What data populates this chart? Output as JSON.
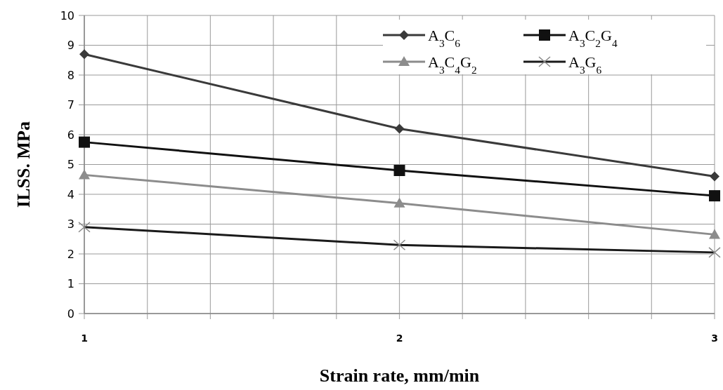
{
  "chart_data": {
    "type": "line",
    "xlabel": "Strain rate, mm/min",
    "ylabel": "ILSS. MPa",
    "x": [
      1,
      2,
      3
    ],
    "xlim": [
      1,
      3
    ],
    "xticks": [
      1,
      {
        "value": 1.2,
        "label": null
      },
      {
        "value": 1.4,
        "label": null
      },
      {
        "value": 1.6,
        "label": null
      },
      {
        "value": 1.8,
        "label": null
      },
      2,
      {
        "value": 2.2,
        "label": null
      },
      {
        "value": 2.4,
        "label": null
      },
      {
        "value": 2.6,
        "label": null
      },
      {
        "value": 2.8,
        "label": null
      },
      3
    ],
    "ylim": [
      0,
      10
    ],
    "yticks": [
      0,
      1,
      2,
      3,
      4,
      5,
      6,
      7,
      8,
      9,
      10
    ],
    "grid": true,
    "legend": "top right",
    "line_style": "solid",
    "series": [
      {
        "name": "A$_{3}$C$_{6}$",
        "color": "#3a3a3a",
        "marker": "diamond",
        "values": [
          8.7,
          6.2,
          4.6
        ]
      },
      {
        "name": "A$_{3}$C$_{2}$G$_{4}$",
        "color": "#111111",
        "marker": "square",
        "values": [
          5.75,
          4.8,
          3.95
        ]
      },
      {
        "name": "A$_{3}$C$_{4}$G$_{2}$",
        "color": "#8c8c8c",
        "marker": "triangle",
        "values": [
          4.65,
          3.7,
          2.65
        ]
      },
      {
        "name": "A$_{3}$G$_{6}$",
        "color": "#1a1a1a",
        "marker": "cross",
        "values": [
          2.9,
          2.3,
          2.05
        ]
      }
    ]
  }
}
